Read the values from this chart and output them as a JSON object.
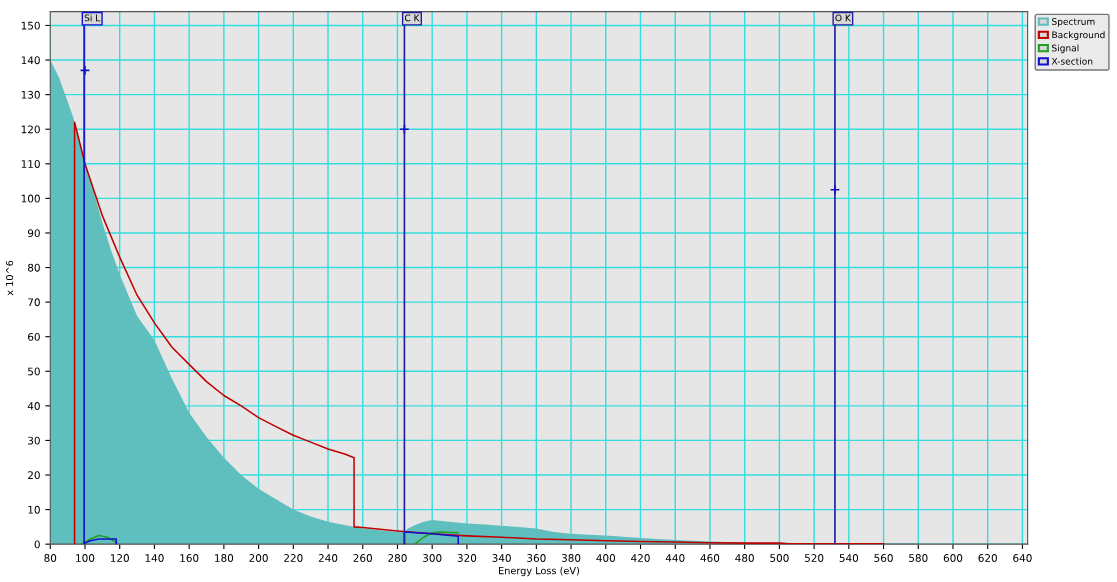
{
  "chart_data": {
    "type": "area",
    "xlabel": "Energy Loss (eV)",
    "ylabel": "x 10^6",
    "xlim": [
      80,
      643
    ],
    "xticks": [
      80,
      100,
      120,
      140,
      160,
      180,
      200,
      220,
      240,
      260,
      280,
      300,
      320,
      340,
      360,
      380,
      400,
      420,
      440,
      460,
      480,
      500,
      520,
      540,
      560,
      580,
      600,
      620,
      640
    ],
    "ylim": [
      0,
      154
    ],
    "yticks": [
      0,
      10,
      20,
      30,
      40,
      50,
      60,
      70,
      80,
      90,
      100,
      110,
      120,
      130,
      140,
      150
    ],
    "grid": true,
    "legend": "top right",
    "series": [
      {
        "name": "Spectrum",
        "color": "#5fbfbf",
        "x": [
          80,
          85,
          90,
          93.5,
          99,
          105,
          110,
          115,
          120,
          125,
          130,
          140,
          150,
          160,
          170,
          180,
          190,
          200,
          210,
          220,
          230,
          240,
          250,
          260,
          270,
          280,
          284,
          286,
          290,
          295,
          300,
          310,
          320,
          330,
          340,
          350,
          360,
          370,
          380,
          390,
          400,
          420,
          440,
          460,
          480,
          500,
          520,
          540,
          560,
          580,
          581
        ],
        "values": [
          140,
          135,
          128,
          123,
          112,
          102,
          93,
          85,
          78,
          72,
          66,
          59,
          48,
          38,
          31,
          25,
          20,
          16,
          13,
          10,
          8,
          6.5,
          5.5,
          4.5,
          4,
          3.5,
          3.5,
          4.5,
          5.5,
          6.5,
          7,
          6.5,
          6,
          5.7,
          5.3,
          5,
          4.5,
          3.5,
          3,
          2.7,
          2.5,
          1.8,
          1.2,
          0.8,
          0.5,
          0.4,
          0.3,
          0.3,
          0.2,
          0.2,
          0
        ]
      },
      {
        "name": "Background",
        "type": "line",
        "color": "#c00000",
        "x": [
          94,
          94,
          100,
          110,
          120,
          130,
          140,
          150,
          160,
          170,
          180,
          190,
          200,
          210,
          220,
          230,
          240,
          250,
          255,
          255,
          260,
          280,
          300,
          320,
          340,
          360,
          380,
          400,
          420,
          440,
          460,
          480,
          500,
          505,
          530,
          560
        ],
        "values": [
          0,
          122,
          110,
          95,
          83,
          72,
          64,
          57,
          52,
          47,
          43,
          40,
          36.6,
          34,
          31.5,
          29.5,
          27.5,
          26,
          25,
          5,
          4.8,
          3.8,
          3,
          2.4,
          2,
          1.5,
          1.3,
          1,
          0.8,
          0.6,
          0.4,
          0.3,
          0.3,
          0.1,
          0.1,
          0.1
        ]
      },
      {
        "name": "Signal",
        "type": "line",
        "color": "#20a020",
        "x": [
          98,
          103,
          108,
          113,
          118,
          284,
          290,
          295,
          300,
          305,
          310,
          315
        ],
        "values": [
          0,
          1.5,
          2.5,
          2,
          0.5,
          null,
          0,
          2,
          3.3,
          3.5,
          3.4,
          3.3
        ]
      },
      {
        "name": "X-section",
        "type": "line",
        "color": "#1010d0",
        "x": [
          99.5,
          100,
          103,
          108,
          118,
          118,
          null,
          284,
          284,
          300,
          315,
          315
        ],
        "values": [
          0,
          0.3,
          1,
          1.5,
          1.5,
          0,
          null,
          0,
          3.5,
          3,
          2.3,
          0
        ]
      },
      {
        "type": "scatter",
        "color": "#1010c0",
        "marker": "cross",
        "x": [
          100,
          284,
          532
        ],
        "values": [
          137,
          120,
          102.5
        ]
      }
    ],
    "ref_lines": [
      {
        "axis": "x",
        "value": 99.5,
        "label": "Si L",
        "color": "#1010d0"
      },
      {
        "axis": "x",
        "value": 284,
        "label": "C K",
        "color": "#2020a0"
      },
      {
        "axis": "x",
        "value": 532,
        "label": "O K",
        "color": "#2020a0"
      }
    ]
  }
}
